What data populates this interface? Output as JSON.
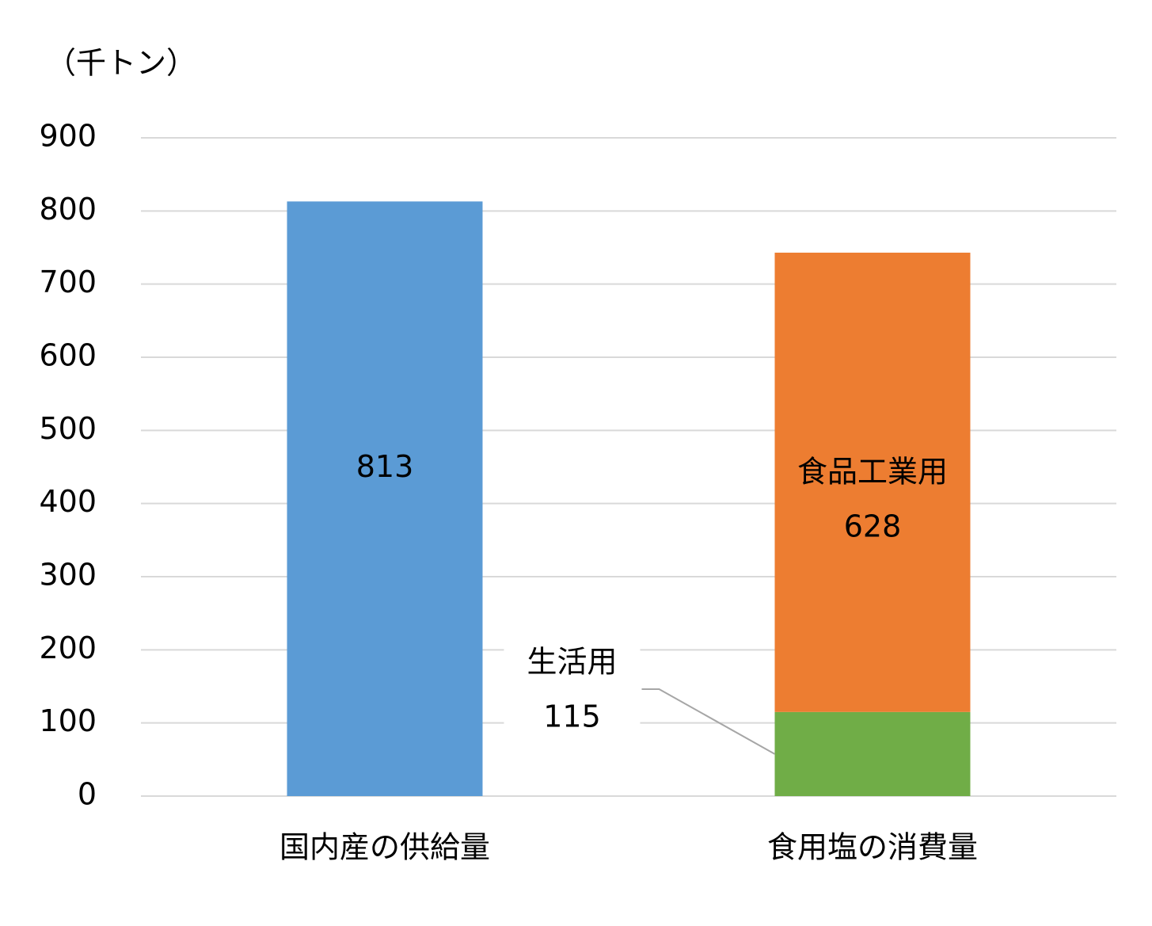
{
  "chart_data": {
    "type": "stacked-bar",
    "y_label": "（千トン）",
    "categories": [
      "国内産の供給量",
      "食用塩の消費量"
    ],
    "series": [
      {
        "color": "#5b9bd5",
        "values": [
          813,
          null
        ]
      },
      {
        "name": "生活用",
        "color": "#70ad47",
        "values": [
          null,
          115
        ]
      },
      {
        "name": "食品工業用",
        "color": "#ed7d31",
        "values": [
          null,
          628
        ]
      }
    ],
    "ylim": [
      0,
      900
    ],
    "yticks": [
      0,
      100,
      200,
      300,
      400,
      500,
      600,
      700,
      800,
      900
    ],
    "grid": true
  }
}
